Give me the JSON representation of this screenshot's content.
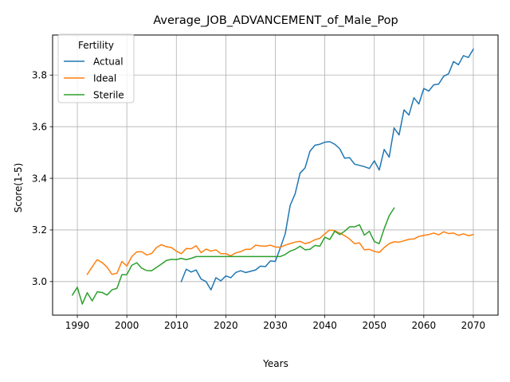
{
  "chart_data": {
    "type": "line",
    "title": "Average_JOB_ADVANCEMENT_of_Male_Pop",
    "xlabel": "Years",
    "ylabel": "Score(1-5)",
    "xlim": [
      1985,
      2075
    ],
    "ylim": [
      2.87,
      3.955
    ],
    "xticks": [
      1990,
      2000,
      2010,
      2020,
      2030,
      2040,
      2050,
      2060,
      2070
    ],
    "yticks": [
      3.0,
      3.2,
      3.4,
      3.6,
      3.8
    ],
    "ytick_labels": [
      "3.0",
      "3.2",
      "3.4",
      "3.6",
      "3.8"
    ],
    "grid": true,
    "legend": {
      "title": "Fertility",
      "placement": "top-left"
    },
    "series": [
      {
        "name": "Actual",
        "color": "#1f77b4",
        "x": [
          2011,
          2012,
          2013,
          2014,
          2015,
          2016,
          2017,
          2018,
          2019,
          2020,
          2021,
          2022,
          2023,
          2024,
          2025,
          2026,
          2027,
          2028,
          2029,
          2030,
          2031,
          2032,
          2033,
          2034,
          2035,
          2036,
          2037,
          2038,
          2039,
          2040,
          2041,
          2042,
          2043,
          2044,
          2045,
          2046,
          2047,
          2048,
          2049,
          2050,
          2051,
          2052,
          2053,
          2054,
          2055,
          2056,
          2057,
          2058,
          2059,
          2060,
          2061,
          2062,
          2063,
          2064,
          2065,
          2066,
          2067,
          2068,
          2069,
          2070
        ],
        "y": [
          3.0,
          3.048,
          3.037,
          3.045,
          3.01,
          3.0,
          2.968,
          3.015,
          3.003,
          3.022,
          3.015,
          3.035,
          3.042,
          3.035,
          3.04,
          3.045,
          3.06,
          3.058,
          3.08,
          3.078,
          3.13,
          3.185,
          3.295,
          3.34,
          3.42,
          3.44,
          3.505,
          3.528,
          3.532,
          3.54,
          3.542,
          3.532,
          3.515,
          3.478,
          3.48,
          3.455,
          3.45,
          3.445,
          3.438,
          3.468,
          3.432,
          3.512,
          3.482,
          3.595,
          3.568,
          3.665,
          3.645,
          3.712,
          3.688,
          3.748,
          3.738,
          3.762,
          3.765,
          3.795,
          3.805,
          3.852,
          3.84,
          3.875,
          3.868,
          3.9
        ]
      },
      {
        "name": "Ideal",
        "color": "#ff7f0e",
        "x": [
          1992,
          1993,
          1994,
          1995,
          1996,
          1997,
          1998,
          1999,
          2000,
          2001,
          2002,
          2003,
          2004,
          2005,
          2006,
          2007,
          2008,
          2009,
          2010,
          2011,
          2012,
          2013,
          2014,
          2015,
          2016,
          2017,
          2018,
          2019,
          2020,
          2021,
          2022,
          2023,
          2024,
          2025,
          2026,
          2027,
          2028,
          2029,
          2030,
          2031,
          2032,
          2033,
          2034,
          2035,
          2036,
          2037,
          2038,
          2039,
          2040,
          2041,
          2042,
          2043,
          2044,
          2045,
          2046,
          2047,
          2048,
          2049,
          2050,
          2051,
          2052,
          2053,
          2054,
          2055,
          2056,
          2057,
          2058,
          2059,
          2060,
          2061,
          2062,
          2063,
          2064,
          2065,
          2066,
          2067,
          2068,
          2069,
          2070
        ],
        "y": [
          3.028,
          3.057,
          3.085,
          3.074,
          3.056,
          3.028,
          3.032,
          3.078,
          3.06,
          3.097,
          3.115,
          3.116,
          3.103,
          3.109,
          3.132,
          3.143,
          3.135,
          3.132,
          3.118,
          3.108,
          3.128,
          3.127,
          3.139,
          3.112,
          3.126,
          3.118,
          3.123,
          3.108,
          3.108,
          3.1,
          3.111,
          3.116,
          3.125,
          3.125,
          3.141,
          3.138,
          3.137,
          3.141,
          3.134,
          3.133,
          3.141,
          3.147,
          3.153,
          3.156,
          3.147,
          3.152,
          3.162,
          3.168,
          3.185,
          3.2,
          3.197,
          3.188,
          3.178,
          3.165,
          3.147,
          3.15,
          3.123,
          3.125,
          3.117,
          3.113,
          3.132,
          3.147,
          3.154,
          3.153,
          3.158,
          3.164,
          3.165,
          3.175,
          3.179,
          3.182,
          3.188,
          3.181,
          3.193,
          3.186,
          3.188,
          3.179,
          3.185,
          3.178,
          3.182
        ]
      },
      {
        "name": "Sterile",
        "color": "#2ca02c",
        "x": [
          1989,
          1990,
          1991,
          1992,
          1993,
          1994,
          1995,
          1996,
          1997,
          1998,
          1999,
          2000,
          2001,
          2002,
          2003,
          2004,
          2005,
          2006,
          2007,
          2008,
          2009,
          2010,
          2011,
          2012,
          2013,
          2014,
          2015,
          2016,
          2017,
          2018,
          2019,
          2020,
          2021,
          2022,
          2023,
          2024,
          2025,
          2026,
          2027,
          2028,
          2029,
          2030,
          2031,
          2032,
          2033,
          2034,
          2035,
          2036,
          2037,
          2038,
          2039,
          2040,
          2041,
          2042,
          2043,
          2044,
          2045,
          2046,
          2047,
          2048,
          2049,
          2050,
          2051,
          2052,
          2053,
          2054
        ],
        "y": [
          2.948,
          2.978,
          2.913,
          2.957,
          2.925,
          2.96,
          2.958,
          2.948,
          2.968,
          2.974,
          3.027,
          3.027,
          3.063,
          3.073,
          3.052,
          3.043,
          3.042,
          3.055,
          3.068,
          3.082,
          3.086,
          3.085,
          3.09,
          3.085,
          3.09,
          3.097,
          3.097,
          3.097,
          3.097,
          3.097,
          3.097,
          3.097,
          3.097,
          3.097,
          3.097,
          3.097,
          3.097,
          3.097,
          3.097,
          3.097,
          3.097,
          3.097,
          3.097,
          3.105,
          3.118,
          3.125,
          3.137,
          3.123,
          3.125,
          3.14,
          3.137,
          3.172,
          3.163,
          3.195,
          3.182,
          3.195,
          3.212,
          3.212,
          3.22,
          3.18,
          3.195,
          3.155,
          3.147,
          3.205,
          3.255,
          3.285
        ]
      }
    ]
  }
}
